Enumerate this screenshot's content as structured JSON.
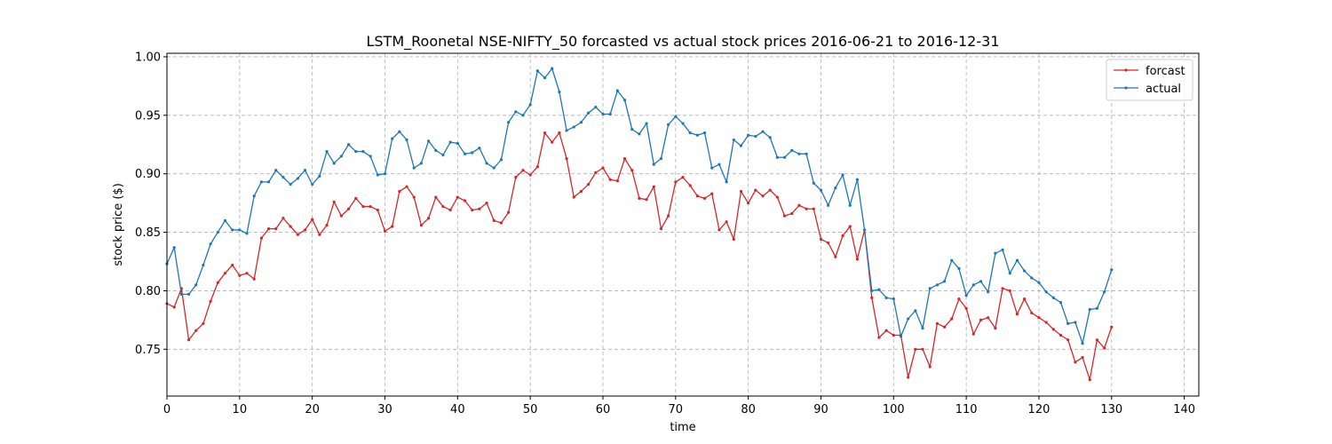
{
  "chart_data": {
    "type": "line",
    "title": "LSTM_Roonetal NSE-NIFTY_50 forcasted vs actual stock prices 2016-06-21 to 2016-12-31",
    "xlabel": "time",
    "ylabel": "stock price ($)",
    "xlim": [
      0,
      142
    ],
    "ylim": [
      0.71,
      1.003
    ],
    "xticks": [
      0,
      10,
      20,
      30,
      40,
      50,
      60,
      70,
      80,
      90,
      100,
      110,
      120,
      130,
      140
    ],
    "yticks": [
      0.75,
      0.8,
      0.85,
      0.9,
      0.95,
      1.0
    ],
    "ytick_labels": [
      "0.75",
      "0.80",
      "0.85",
      "0.90",
      "0.95",
      "1.00"
    ],
    "grid": true,
    "legend_position": "top-right",
    "series": [
      {
        "name": "forcast",
        "color": "#d62728",
        "values": [
          0.789,
          0.786,
          0.802,
          0.758,
          0.766,
          0.772,
          0.791,
          0.807,
          0.815,
          0.822,
          0.813,
          0.815,
          0.81,
          0.845,
          0.853,
          0.853,
          0.862,
          0.855,
          0.848,
          0.852,
          0.861,
          0.848,
          0.856,
          0.876,
          0.864,
          0.87,
          0.879,
          0.872,
          0.872,
          0.869,
          0.851,
          0.855,
          0.885,
          0.889,
          0.88,
          0.856,
          0.862,
          0.88,
          0.872,
          0.869,
          0.88,
          0.877,
          0.869,
          0.87,
          0.875,
          0.86,
          0.858,
          0.867,
          0.897,
          0.903,
          0.899,
          0.906,
          0.935,
          0.927,
          0.935,
          0.913,
          0.88,
          0.885,
          0.891,
          0.901,
          0.905,
          0.895,
          0.894,
          0.913,
          0.903,
          0.879,
          0.878,
          0.889,
          0.853,
          0.864,
          0.893,
          0.897,
          0.89,
          0.881,
          0.879,
          0.883,
          0.852,
          0.859,
          0.844,
          0.885,
          0.875,
          0.886,
          0.881,
          0.886,
          0.88,
          0.864,
          0.866,
          0.873,
          0.87,
          0.87,
          0.844,
          0.841,
          0.829,
          0.847,
          0.855,
          0.827,
          0.852,
          0.794,
          0.76,
          0.766,
          0.762,
          0.762,
          0.726,
          0.75,
          0.75,
          0.735,
          0.772,
          0.769,
          0.776,
          0.793,
          0.785,
          0.763,
          0.775,
          0.777,
          0.768,
          0.802,
          0.8,
          0.78,
          0.793,
          0.781,
          0.777,
          0.773,
          0.767,
          0.762,
          0.758,
          0.739,
          0.743,
          0.724,
          0.758,
          0.751,
          0.769
        ]
      },
      {
        "name": "actual",
        "color": "#1f77b4",
        "values": [
          0.823,
          0.837,
          0.797,
          0.797,
          0.805,
          0.822,
          0.84,
          0.85,
          0.86,
          0.852,
          0.852,
          0.849,
          0.881,
          0.893,
          0.893,
          0.903,
          0.897,
          0.891,
          0.896,
          0.903,
          0.891,
          0.898,
          0.919,
          0.909,
          0.915,
          0.925,
          0.919,
          0.919,
          0.915,
          0.899,
          0.9,
          0.93,
          0.936,
          0.929,
          0.905,
          0.909,
          0.928,
          0.92,
          0.916,
          0.927,
          0.926,
          0.917,
          0.918,
          0.922,
          0.909,
          0.905,
          0.912,
          0.944,
          0.953,
          0.95,
          0.959,
          0.988,
          0.982,
          0.99,
          0.97,
          0.937,
          0.94,
          0.944,
          0.952,
          0.957,
          0.951,
          0.951,
          0.971,
          0.963,
          0.938,
          0.934,
          0.943,
          0.908,
          0.913,
          0.942,
          0.949,
          0.943,
          0.935,
          0.933,
          0.935,
          0.905,
          0.908,
          0.893,
          0.929,
          0.924,
          0.933,
          0.932,
          0.936,
          0.931,
          0.914,
          0.914,
          0.92,
          0.917,
          0.917,
          0.892,
          0.886,
          0.873,
          0.888,
          0.899,
          0.873,
          0.895,
          0.852,
          0.8,
          0.801,
          0.794,
          0.793,
          0.761,
          0.776,
          0.783,
          0.768,
          0.802,
          0.805,
          0.808,
          0.826,
          0.819,
          0.796,
          0.805,
          0.808,
          0.799,
          0.832,
          0.835,
          0.815,
          0.826,
          0.817,
          0.811,
          0.807,
          0.799,
          0.794,
          0.79,
          0.772,
          0.773,
          0.755,
          0.784,
          0.785,
          0.799,
          0.818
        ]
      }
    ]
  }
}
